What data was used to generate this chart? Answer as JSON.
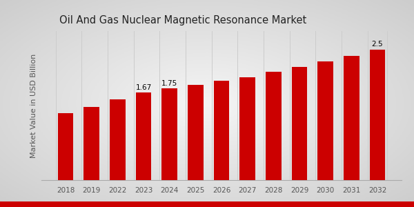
{
  "title": "Oil And Gas Nuclear Magnetic Resonance Market",
  "ylabel": "Market Value in USD Billion",
  "categories": [
    "2018",
    "2019",
    "2022",
    "2023",
    "2024",
    "2025",
    "2026",
    "2027",
    "2028",
    "2029",
    "2030",
    "2031",
    "2032"
  ],
  "values": [
    1.28,
    1.4,
    1.55,
    1.67,
    1.75,
    1.82,
    1.9,
    1.97,
    2.07,
    2.17,
    2.27,
    2.38,
    2.5
  ],
  "bar_color": "#CC0000",
  "bg_color_center": "#f5f5f5",
  "bg_color_edge": "#d0d0d0",
  "title_fontsize": 10.5,
  "label_fontsize": 7.5,
  "ylabel_fontsize": 8,
  "annotated_bars": {
    "2023": "1.67",
    "2024": "1.75",
    "2032": "2.5"
  },
  "ylim": [
    0,
    2.85
  ],
  "bottom_stripe_color": "#CC0000",
  "grid_color": "#cccccc",
  "tick_color": "#555555"
}
